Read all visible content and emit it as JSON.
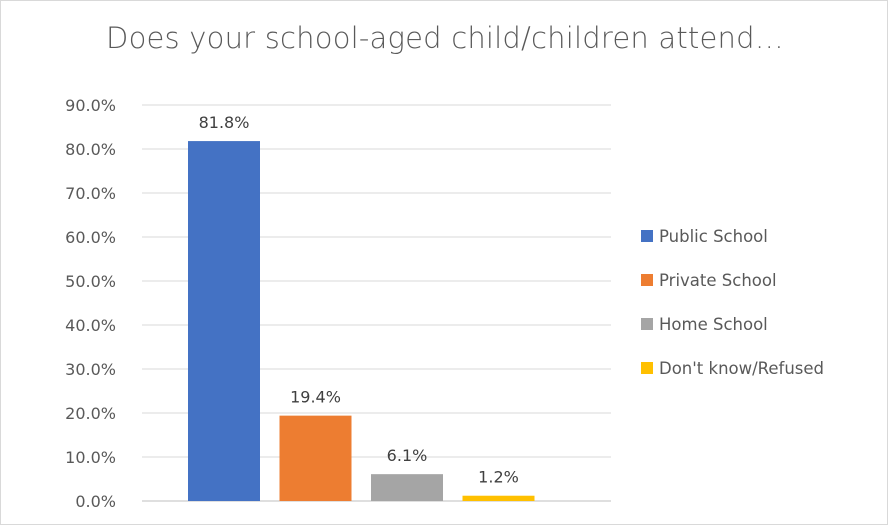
{
  "chart_data": {
    "type": "bar",
    "title": "Does your school-aged child/children attend…",
    "xlabel": "",
    "ylabel": "",
    "ylim": [
      0,
      90
    ],
    "y_ticks": [
      "0.0%",
      "10.0%",
      "20.0%",
      "30.0%",
      "40.0%",
      "50.0%",
      "60.0%",
      "70.0%",
      "80.0%",
      "90.0%"
    ],
    "grid": true,
    "legend_position": "right",
    "series": [
      {
        "name": "Public School",
        "value": 81.8,
        "label": "81.8%",
        "color": "#4472c4"
      },
      {
        "name": "Private School",
        "value": 19.4,
        "label": "19.4%",
        "color": "#ed7d31"
      },
      {
        "name": "Home School",
        "value": 6.1,
        "label": "6.1%",
        "color": "#a5a5a5"
      },
      {
        "name": "Don't know/Refused",
        "value": 1.2,
        "label": "1.2%",
        "color": "#ffc000"
      }
    ]
  }
}
